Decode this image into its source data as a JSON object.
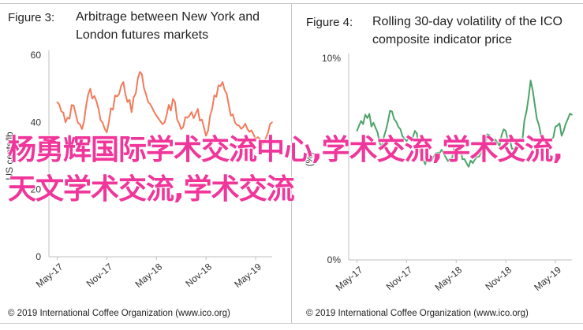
{
  "figures": [
    {
      "number": "Figure 3:",
      "title_line1": "Arbitrage between New York and",
      "title_line2": "London futures markets",
      "footer": "© 2019 International Coffee Organization (www.ico.org)"
    },
    {
      "number": "Figure 4:",
      "title_line1": "Rolling 30-day volatility of the ICO",
      "title_line2": "composite indicator price",
      "footer": "© 2019 International Coffee Organization (www.ico.org)"
    }
  ],
  "watermark": "杨勇辉国际学术交流中心,学术交流,学术交流,天文学术交流,学术交流",
  "chart_data": [
    {
      "type": "line",
      "title": "Arbitrage between New York and London futures markets",
      "ylabel": "US cents/lb",
      "ylim": [
        0,
        60
      ],
      "yticks": [
        "0",
        "20",
        "40",
        "60"
      ],
      "ytick_values": [
        0,
        20,
        40,
        60
      ],
      "xticks": [
        "May-17",
        "Nov-17",
        "May-18",
        "Nov-18",
        "May-19"
      ],
      "x_range": [
        "2017-04",
        "2019-07"
      ],
      "grid": false,
      "color": "#f47a5a",
      "series": [
        {
          "x": [
            "2017-05",
            "2017-06",
            "2017-07",
            "2017-08",
            "2017-09",
            "2017-10",
            "2017-11",
            "2017-12",
            "2018-01",
            "2018-02",
            "2018-03",
            "2018-04",
            "2018-05",
            "2018-06",
            "2018-07",
            "2018-08",
            "2018-09",
            "2018-10",
            "2018-11",
            "2018-12",
            "2019-01",
            "2019-02",
            "2019-03",
            "2019-04",
            "2019-05",
            "2019-06",
            "2019-07"
          ],
          "values": [
            46,
            40,
            45,
            38,
            50,
            44,
            37,
            48,
            52,
            43,
            55,
            46,
            42,
            40,
            47,
            38,
            42,
            44,
            36,
            48,
            52,
            42,
            39,
            38,
            35,
            34,
            40
          ]
        }
      ]
    },
    {
      "type": "line",
      "title": "Rolling 30-day volatility of the ICO composite indicator price",
      "ylabel": "(%)",
      "ylim": [
        0,
        10
      ],
      "yticks": [
        "0%",
        "10%"
      ],
      "ytick_values": [
        0,
        10
      ],
      "xticks": [
        "May-17",
        "Nov-17",
        "May-18",
        "Nov-18",
        "May-19"
      ],
      "x_range": [
        "2017-04",
        "2019-07"
      ],
      "grid": false,
      "color": "#4da36a",
      "series": [
        {
          "x": [
            "2017-05",
            "2017-06",
            "2017-07",
            "2017-08",
            "2017-09",
            "2017-10",
            "2017-11",
            "2017-12",
            "2018-01",
            "2018-02",
            "2018-03",
            "2018-04",
            "2018-05",
            "2018-06",
            "2018-07",
            "2018-08",
            "2018-09",
            "2018-10",
            "2018-11",
            "2018-12",
            "2019-01",
            "2019-02",
            "2019-03",
            "2019-04",
            "2019-05",
            "2019-06",
            "2019-07"
          ],
          "values": [
            6.4,
            7.2,
            6.8,
            5.6,
            7.4,
            6.6,
            5.9,
            6.4,
            5.0,
            4.9,
            5.3,
            4.9,
            5.7,
            5.0,
            4.8,
            5.3,
            6.2,
            5.8,
            6.4,
            5.5,
            5.9,
            8.9,
            6.7,
            5.7,
            6.6,
            6.4,
            7.2
          ]
        }
      ]
    }
  ]
}
